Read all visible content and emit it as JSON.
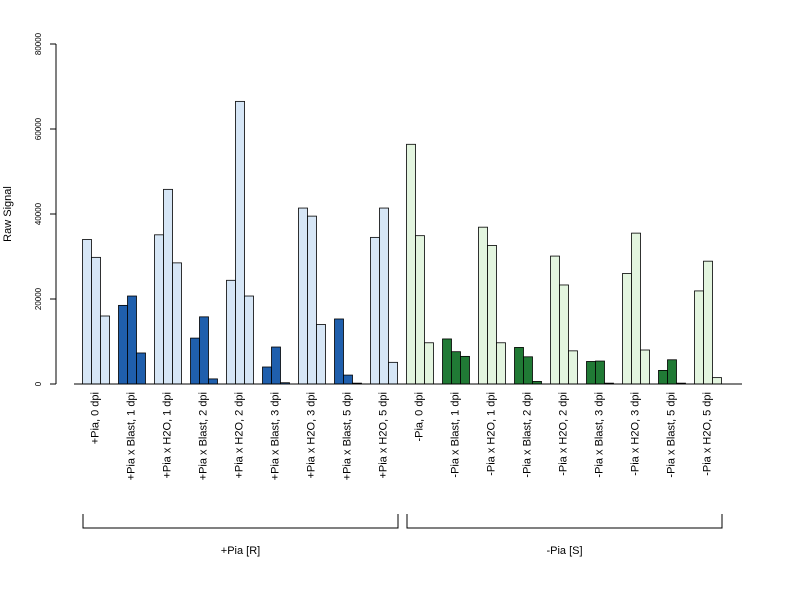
{
  "chart_data": {
    "type": "bar",
    "title": "",
    "xlabel": "",
    "ylabel": "Raw Signal",
    "ylim": [
      0,
      80000
    ],
    "y_ticks": [
      0,
      20000,
      40000,
      60000,
      80000
    ],
    "y_tick_labels": [
      "0",
      "20000",
      "40000",
      "60000",
      "80000"
    ],
    "bars_per_category": 3,
    "grid": false,
    "legend": "none",
    "colors": {
      "plus_light": "#d6e6f6",
      "plus_dark": "#1f5fad",
      "minus_light": "#e3f5df",
      "minus_dark": "#207a35",
      "outline": "#000000"
    },
    "categories": [
      "+Pia, 0 dpi",
      "+Pia x Blast, 1 dpi",
      "+Pia x H2O, 1 dpi",
      "+Pia x Blast, 2 dpi",
      "+Pia x H2O, 2 dpi",
      "+Pia x Blast, 3 dpi",
      "+Pia x H2O, 3 dpi",
      "+Pia x Blast, 5 dpi",
      "+Pia x H2O, 5 dpi",
      "-Pia, 0 dpi",
      "-Pia x Blast, 1 dpi",
      "-Pia x H2O, 1 dpi",
      "-Pia x Blast, 2 dpi",
      "-Pia x H2O, 2 dpi",
      "-Pia x Blast, 3 dpi",
      "-Pia x H2O, 3 dpi",
      "-Pia x Blast, 5 dpi",
      "-Pia x H2O, 5 dpi"
    ],
    "category_color": [
      "plus_light",
      "plus_dark",
      "plus_light",
      "plus_dark",
      "plus_light",
      "plus_dark",
      "plus_light",
      "plus_dark",
      "plus_light",
      "minus_light",
      "minus_dark",
      "minus_light",
      "minus_dark",
      "minus_light",
      "minus_dark",
      "minus_light",
      "minus_dark",
      "minus_light"
    ],
    "values": [
      [
        34000,
        29800,
        16000
      ],
      [
        18500,
        20700,
        7300
      ],
      [
        35100,
        45800,
        28500
      ],
      [
        10800,
        15800,
        1200
      ],
      [
        24400,
        66500,
        20700
      ],
      [
        4000,
        8700,
        300
      ],
      [
        41400,
        39500,
        14000
      ],
      [
        15300,
        2100,
        200
      ],
      [
        34500,
        41400,
        5100
      ],
      [
        56400,
        34900,
        9700
      ],
      [
        10600,
        7600,
        6500
      ],
      [
        36900,
        32600,
        9700
      ],
      [
        8600,
        6400,
        600
      ],
      [
        30100,
        23300,
        7800
      ],
      [
        5300,
        5400,
        200
      ],
      [
        26000,
        35500,
        8000
      ],
      [
        3200,
        5700,
        200
      ],
      [
        21900,
        28900,
        1500
      ]
    ],
    "groups": [
      {
        "label": "+Pia [R]",
        "first_category": 0,
        "last_category": 8
      },
      {
        "label": "-Pia [S]",
        "first_category": 9,
        "last_category": 17
      }
    ]
  }
}
